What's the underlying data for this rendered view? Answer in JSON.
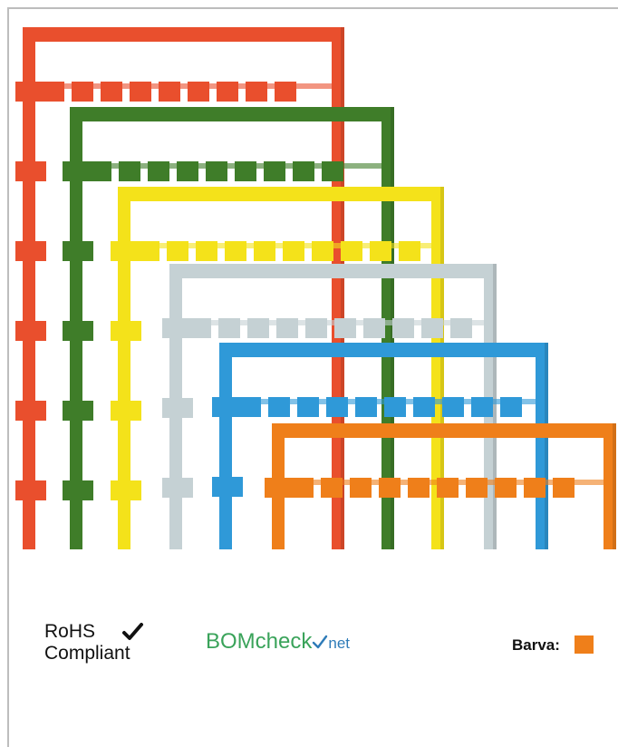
{
  "product_image": {
    "alt_colors": [
      "#e94f2d",
      "#3f7d29",
      "#f4e21a",
      "#c5d1d4",
      "#2f99d8",
      "#ef7f1a"
    ]
  },
  "footer": {
    "rohs": {
      "line1": "RoHS",
      "line2": "Compliant",
      "icon": "check-icon"
    },
    "bomcheck": {
      "part1": "BOM",
      "part2": "check",
      "part3": "net",
      "color1": "#3aa35a",
      "color2": "#2e7bb8"
    },
    "color": {
      "label": "Barva:",
      "value": "#ef7f1a"
    }
  }
}
